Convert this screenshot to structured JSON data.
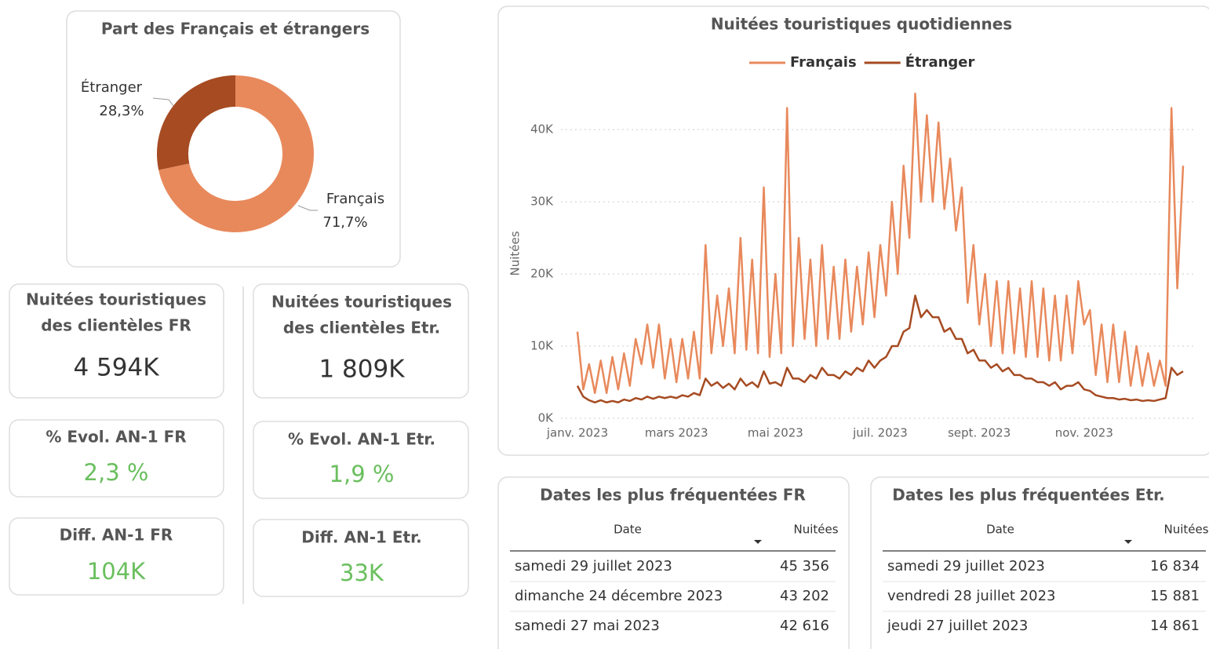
{
  "chart_data": [
    {
      "type": "pie",
      "title": "Part des Français et étrangers",
      "categories": [
        "Français",
        "Étranger"
      ],
      "values": [
        71.7,
        28.3
      ],
      "value_labels": [
        "71,7%",
        "28,3%"
      ],
      "colors": [
        "#e8895c",
        "#a64b22"
      ],
      "donut": true
    },
    {
      "type": "line",
      "title": "Nuitées touristiques quotidiennes",
      "ylabel": "Nuitées",
      "legend": "top",
      "categories": [
        "janv. 2023",
        null,
        null,
        null,
        null,
        null,
        null,
        null,
        null,
        null,
        null,
        null,
        null,
        null,
        null,
        null,
        null,
        "mars 2023",
        null,
        null,
        null,
        null,
        null,
        null,
        null,
        null,
        null,
        null,
        null,
        null,
        null,
        null,
        null,
        null,
        "mai 2023",
        null,
        null,
        null,
        null,
        null,
        null,
        null,
        null,
        null,
        null,
        null,
        null,
        null,
        null,
        null,
        null,
        null,
        "juil. 2023",
        null,
        null,
        null,
        null,
        null,
        null,
        null,
        null,
        null,
        null,
        null,
        null,
        null,
        null,
        null,
        null,
        "sept. 2023",
        null,
        null,
        null,
        null,
        null,
        null,
        null,
        null,
        null,
        null,
        null,
        null,
        null,
        null,
        null,
        null,
        null,
        "nov. 2023",
        null,
        null,
        null,
        null,
        null,
        null,
        null,
        null,
        null,
        null,
        null,
        null,
        null,
        null,
        null,
        null,
        null
      ],
      "series": [
        {
          "name": "Français",
          "color": "#e8895c",
          "values": [
            12000,
            4000,
            7500,
            3500,
            8000,
            3500,
            8500,
            4000,
            9000,
            4500,
            11000,
            7500,
            13000,
            7000,
            13000,
            5500,
            11000,
            5000,
            11000,
            5500,
            12000,
            5500,
            24000,
            9000,
            17000,
            10000,
            18000,
            9000,
            25000,
            9500,
            22000,
            9000,
            32000,
            8500,
            20000,
            9000,
            43000,
            10000,
            25000,
            11000,
            22000,
            10000,
            24000,
            11000,
            21000,
            11000,
            22000,
            12000,
            21000,
            13000,
            23000,
            14000,
            24000,
            17000,
            30000,
            20000,
            35000,
            25000,
            45000,
            30000,
            42000,
            30000,
            41000,
            29000,
            36000,
            26000,
            32000,
            16000,
            24000,
            13000,
            20000,
            10000,
            19000,
            9000,
            19000,
            9000,
            18000,
            8500,
            19000,
            8500,
            18000,
            8000,
            17000,
            8000,
            17000,
            9000,
            19000,
            13000,
            15000,
            6000,
            13000,
            5000,
            13000,
            5000,
            12000,
            4500,
            10000,
            4500,
            9000,
            4500,
            8000,
            4500,
            43000,
            18000,
            35000
          ]
        },
        {
          "name": "Étranger",
          "color": "#a64b22",
          "values": [
            4500,
            3000,
            2500,
            2200,
            2500,
            2200,
            2400,
            2200,
            2600,
            2400,
            2800,
            2600,
            3000,
            2700,
            3000,
            2800,
            3000,
            2800,
            3200,
            3000,
            3500,
            3200,
            5500,
            4500,
            5000,
            4200,
            4800,
            4000,
            5500,
            4500,
            5000,
            4300,
            6500,
            4800,
            5000,
            4500,
            7000,
            5500,
            5500,
            5000,
            6000,
            5500,
            7000,
            6000,
            6000,
            5500,
            6500,
            6000,
            7000,
            6500,
            8000,
            7000,
            8000,
            8500,
            10000,
            10000,
            12000,
            12500,
            17000,
            14000,
            15000,
            14000,
            14000,
            12000,
            12500,
            11000,
            11000,
            9000,
            9500,
            8000,
            8000,
            7000,
            7500,
            6500,
            7000,
            6000,
            6000,
            5500,
            5500,
            5000,
            5000,
            4500,
            5000,
            4000,
            4500,
            4500,
            5000,
            4000,
            3800,
            3200,
            3000,
            2800,
            2800,
            2600,
            2700,
            2500,
            2600,
            2400,
            2500,
            2400,
            2600,
            2800,
            7000,
            6000,
            6500
          ]
        }
      ],
      "ylim": [
        0,
        46000
      ],
      "yticks": [
        {
          "value": 0,
          "label": "0K"
        },
        {
          "value": 10000,
          "label": "10K"
        },
        {
          "value": 20000,
          "label": "20K"
        },
        {
          "value": 30000,
          "label": "30K"
        },
        {
          "value": 40000,
          "label": "40K"
        }
      ],
      "grid": true
    }
  ],
  "kpis": [
    {
      "title": [
        "Nuitées touristiques",
        "des clientèles FR"
      ],
      "value": "4 594K"
    },
    {
      "title": [
        "Nuitées touristiques",
        "des clientèles Etr."
      ],
      "value": "1 809K"
    },
    {
      "title": [
        "% Evol. AN-1 FR"
      ],
      "value": "2,3 %"
    },
    {
      "title": [
        "% Evol. AN-1 Etr."
      ],
      "value": "1,9 %"
    },
    {
      "title": [
        "Diff. AN-1 FR"
      ],
      "value": "104K"
    },
    {
      "title": [
        "Diff. AN-1 Etr."
      ],
      "value": "33K"
    }
  ],
  "tables": [
    {
      "title": "Dates les plus fréquentées FR",
      "columns": [
        "Date",
        "Nuitées"
      ],
      "rows": [
        [
          "samedi 29 juillet 2023",
          "45 356"
        ],
        [
          "dimanche 24 décembre 2023",
          "43 202"
        ],
        [
          "samedi 27 mai 2023",
          "42 616"
        ]
      ]
    },
    {
      "title": "Dates les plus fréquentées Etr.",
      "columns": [
        "Date",
        "Nuitées"
      ],
      "rows": [
        [
          "samedi 29 juillet 2023",
          "16 834"
        ],
        [
          "vendredi 28 juillet 2023",
          "15 881"
        ],
        [
          "jeudi 27 juillet 2023",
          "14 861"
        ]
      ]
    }
  ]
}
